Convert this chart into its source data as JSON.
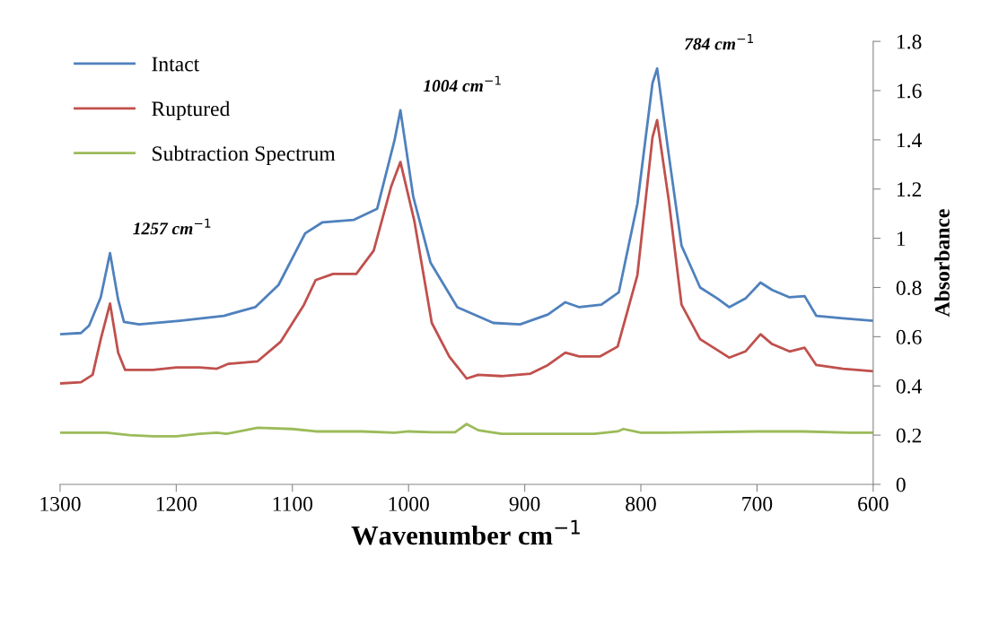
{
  "chart_data": {
    "type": "line",
    "xlabel": "Wavenumber cm$^{−1}$",
    "ylabel": "Absorbance",
    "xlim": [
      1300,
      600
    ],
    "xticks": [
      1300,
      1200,
      1100,
      1000,
      900,
      800,
      700,
      600
    ],
    "ylim": [
      0,
      1.8
    ],
    "yticks": [
      0,
      0.2,
      0.4,
      0.6,
      0.8,
      {
        "value": 1,
        "label": "1"
      },
      1.2,
      1.4,
      1.6,
      1.8
    ],
    "grid": false,
    "legend": "top left",
    "marker": "none",
    "line_style": "solid",
    "annotations": [
      {
        "text": "1257 cm$^{−1}$",
        "x": 1257,
        "y": 0.94
      },
      {
        "text": "1004 cm$^{−1}$",
        "x": 1007,
        "y": 1.52
      },
      {
        "text": "784 cm$^{−1}$",
        "x": 786,
        "y": 1.69
      }
    ],
    "series": [
      {
        "name": "Intact",
        "color": "#4f81bd",
        "x": [
          1300,
          1282,
          1275,
          1265,
          1257,
          1250,
          1245,
          1232,
          1197,
          1159,
          1132,
          1112,
          1089,
          1074,
          1047,
          1027,
          1012,
          1007,
          996,
          981,
          958,
          927,
          904,
          880,
          865,
          853,
          834,
          819,
          803,
          790,
          786,
          776,
          765,
          749,
          734,
          724,
          710,
          697,
          687,
          672,
          659,
          649,
          626,
          600
        ],
        "values": [
          0.61,
          0.615,
          0.645,
          0.76,
          0.94,
          0.75,
          0.66,
          0.65,
          0.665,
          0.685,
          0.72,
          0.81,
          1.02,
          1.065,
          1.075,
          1.12,
          1.4,
          1.52,
          1.17,
          0.9,
          0.72,
          0.656,
          0.65,
          0.69,
          0.74,
          0.72,
          0.73,
          0.78,
          1.14,
          1.63,
          1.69,
          1.34,
          0.97,
          0.8,
          0.755,
          0.72,
          0.755,
          0.82,
          0.79,
          0.76,
          0.765,
          0.685,
          0.675,
          0.665
        ]
      },
      {
        "name": "Ruptured",
        "color": "#c0504d",
        "x": [
          1300,
          1282,
          1272,
          1265,
          1257,
          1250,
          1244,
          1220,
          1200,
          1180,
          1165,
          1155,
          1130,
          1110,
          1090,
          1080,
          1065,
          1045,
          1030,
          1015,
          1007,
          995,
          980,
          965,
          950,
          940,
          920,
          895,
          880,
          865,
          853,
          835,
          820,
          803,
          790,
          786,
          776,
          765,
          749,
          734,
          724,
          710,
          697,
          687,
          672,
          659,
          649,
          626,
          600
        ],
        "values": [
          0.41,
          0.415,
          0.445,
          0.59,
          0.735,
          0.535,
          0.465,
          0.465,
          0.475,
          0.475,
          0.47,
          0.49,
          0.5,
          0.58,
          0.73,
          0.83,
          0.855,
          0.855,
          0.95,
          1.21,
          1.31,
          1.07,
          0.656,
          0.52,
          0.43,
          0.445,
          0.44,
          0.45,
          0.485,
          0.535,
          0.52,
          0.52,
          0.56,
          0.85,
          1.41,
          1.48,
          1.155,
          0.73,
          0.59,
          0.545,
          0.515,
          0.54,
          0.61,
          0.57,
          0.54,
          0.555,
          0.485,
          0.47,
          0.46
        ]
      },
      {
        "name": "Subtraction Spectrum",
        "color": "#9bbb59",
        "x": [
          1300,
          1260,
          1240,
          1220,
          1200,
          1180,
          1165,
          1157,
          1130,
          1100,
          1080,
          1040,
          1012,
          1000,
          980,
          960,
          950,
          940,
          920,
          880,
          840,
          820,
          815,
          800,
          780,
          700,
          660,
          620,
          600
        ],
        "values": [
          0.21,
          0.21,
          0.2,
          0.195,
          0.195,
          0.205,
          0.21,
          0.205,
          0.23,
          0.225,
          0.215,
          0.215,
          0.21,
          0.215,
          0.212,
          0.212,
          0.245,
          0.22,
          0.205,
          0.205,
          0.205,
          0.215,
          0.225,
          0.21,
          0.21,
          0.215,
          0.215,
          0.21,
          0.21
        ]
      }
    ]
  }
}
